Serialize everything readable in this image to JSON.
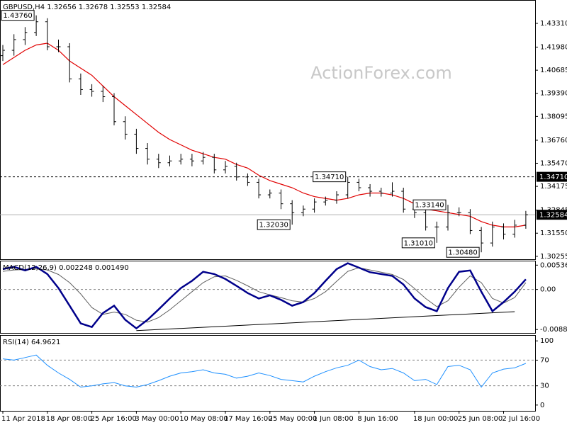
{
  "chart_data": [
    {
      "type": "ohlc",
      "title": "GBPUSD,H4  1.32656 1.32678 1.32553 1.32584",
      "watermark": "ActionForex.com",
      "color": "#000000",
      "open": [
        1.415,
        1.418,
        1.424,
        1.428,
        1.434,
        1.42,
        1.42,
        1.402,
        1.396,
        1.395,
        1.392,
        1.378,
        1.371,
        1.363,
        1.357,
        1.355,
        1.356,
        1.357,
        1.356,
        1.358,
        1.351,
        1.353,
        1.347,
        1.344,
        1.337,
        1.338,
        1.332,
        1.327,
        1.329,
        1.333,
        1.334,
        1.337,
        1.344,
        1.341,
        1.339,
        1.338,
        1.339,
        1.329,
        1.327,
        1.319,
        1.319,
        1.327,
        1.327,
        1.317,
        1.31,
        1.319,
        1.315,
        1.32
      ],
      "high": [
        1.421,
        1.427,
        1.431,
        1.4376,
        1.436,
        1.424,
        1.422,
        1.405,
        1.399,
        1.398,
        1.394,
        1.381,
        1.374,
        1.366,
        1.36,
        1.359,
        1.36,
        1.36,
        1.361,
        1.36,
        1.356,
        1.355,
        1.349,
        1.346,
        1.34,
        1.34,
        1.334,
        1.331,
        1.335,
        1.336,
        1.339,
        1.3471,
        1.346,
        1.343,
        1.341,
        1.344,
        1.341,
        1.331,
        1.329,
        1.322,
        1.3314,
        1.33,
        1.329,
        1.319,
        1.322,
        1.321,
        1.323,
        1.328
      ],
      "low": [
        1.412,
        1.415,
        1.421,
        1.426,
        1.418,
        1.417,
        1.4,
        1.393,
        1.392,
        1.389,
        1.376,
        1.368,
        1.36,
        1.354,
        1.352,
        1.353,
        1.354,
        1.353,
        1.354,
        1.349,
        1.349,
        1.345,
        1.342,
        1.335,
        1.335,
        1.329,
        1.3203,
        1.325,
        1.327,
        1.331,
        1.332,
        1.335,
        1.339,
        1.336,
        1.336,
        1.336,
        1.327,
        1.324,
        1.317,
        1.3101,
        1.317,
        1.325,
        1.315,
        1.3048,
        1.308,
        1.312,
        1.313,
        1.318
      ],
      "close": [
        1.418,
        1.424,
        1.428,
        1.434,
        1.42,
        1.42,
        1.402,
        1.396,
        1.395,
        1.392,
        1.378,
        1.371,
        1.363,
        1.357,
        1.355,
        1.356,
        1.357,
        1.356,
        1.358,
        1.351,
        1.353,
        1.347,
        1.344,
        1.337,
        1.338,
        1.332,
        1.327,
        1.329,
        1.333,
        1.334,
        1.337,
        1.344,
        1.341,
        1.339,
        1.338,
        1.339,
        1.329,
        1.327,
        1.319,
        1.319,
        1.327,
        1.327,
        1.317,
        1.31,
        1.319,
        1.315,
        1.32,
        1.32584
      ],
      "moving_average": {
        "color": "#e00000",
        "values": [
          1.41,
          1.414,
          1.418,
          1.421,
          1.422,
          1.418,
          1.412,
          1.408,
          1.404,
          1.398,
          1.392,
          1.387,
          1.382,
          1.377,
          1.372,
          1.368,
          1.365,
          1.362,
          1.36,
          1.358,
          1.357,
          1.354,
          1.352,
          1.348,
          1.345,
          1.343,
          1.341,
          1.338,
          1.336,
          1.335,
          1.334,
          1.335,
          1.337,
          1.338,
          1.338,
          1.337,
          1.335,
          1.332,
          1.329,
          1.328,
          1.327,
          1.326,
          1.325,
          1.322,
          1.32,
          1.319,
          1.319,
          1.32
        ]
      },
      "ylim": [
        1.3009,
        1.4458
      ],
      "yticks": [
        {
          "value": 1.4331,
          "label": "1.43310"
        },
        {
          "value": 1.4198,
          "label": "1.41980"
        },
        1.40685,
        {
          "value": 1.3939,
          "label": "1.39390"
        },
        1.38095,
        {
          "value": 1.3676,
          "label": "1.36760"
        },
        {
          "value": 1.3547,
          "label": "1.35470"
        },
        1.34175,
        1.32845,
        {
          "value": 1.3155,
          "label": "1.31550"
        },
        1.30255
      ],
      "hline": {
        "value": 1.3471,
        "label": "1.34710"
      },
      "last_price": {
        "value": 1.32584,
        "label": "1.32584"
      },
      "annotations": [
        {
          "value": 1.4376,
          "label": "1.43760",
          "at": "high"
        },
        {
          "value": 1.3471,
          "label": "1.34710",
          "at": "high"
        },
        {
          "value": 1.3314,
          "label": "1.33140",
          "at": "high"
        },
        {
          "value": 1.3203,
          "label": "1.32030",
          "at": "low"
        },
        {
          "value": 1.3101,
          "label": "1.31010",
          "at": "low"
        },
        {
          "value": 1.3048,
          "label": "1.30480",
          "at": "low"
        }
      ]
    },
    {
      "type": "line",
      "title": "MACD(12,26,9) 0.002248 0.001490",
      "ylim": [
        -0.0096,
        0.0062
      ],
      "yticks": [
        0.005368,
        {
          "value": 0,
          "label": "0.00"
        },
        -0.008855
      ],
      "levels": [
        0
      ],
      "series": [
        {
          "color": "#00008b",
          "width": 2.5,
          "values": [
            0.0045,
            0.005,
            0.0042,
            0.005,
            0.0034,
            0.0003,
            -0.0036,
            -0.0075,
            -0.0083,
            -0.0052,
            -0.0036,
            -0.0067,
            -0.0086,
            -0.0067,
            -0.0044,
            -0.002,
            0.0003,
            0.0019,
            0.0039,
            0.0034,
            0.0023,
            0.0008,
            -0.0008,
            -0.002,
            -0.0013,
            -0.0023,
            -0.0036,
            -0.0028,
            -0.0008,
            0.0019,
            0.0045,
            0.0058,
            0.0048,
            0.0038,
            0.0034,
            0.003,
            0.0011,
            -0.002,
            -0.0039,
            -0.0048,
            0.0003,
            0.0039,
            0.0042,
            -0.0005,
            -0.0048,
            -0.0028,
            -0.0005,
            0.002248
          ]
        },
        {
          "color": "#606060",
          "width": 1,
          "values": [
            0.004,
            0.0043,
            0.0044,
            0.0046,
            0.0043,
            0.0033,
            0.0015,
            -0.001,
            -0.004,
            -0.0055,
            -0.005,
            -0.0055,
            -0.0068,
            -0.0072,
            -0.0062,
            -0.0045,
            -0.0025,
            -0.0005,
            0.0015,
            0.0028,
            0.003,
            0.002,
            0.0008,
            -0.0005,
            -0.0012,
            -0.0018,
            -0.0025,
            -0.0028,
            -0.002,
            -0.0005,
            0.0018,
            0.004,
            0.0048,
            0.0043,
            0.0038,
            0.0033,
            0.0022,
            0.0002,
            -0.002,
            -0.0038,
            -0.0025,
            0.0005,
            0.003,
            0.0015,
            -0.002,
            -0.003,
            -0.0018,
            0.00149
          ]
        }
      ],
      "trendline": {
        "x": [
          12,
          46
        ],
        "values": [
          -0.0091,
          -0.0049
        ]
      }
    },
    {
      "type": "line",
      "title": "RSI(14) 64.9621",
      "ylim": [
        -9,
        108
      ],
      "yticks": [
        100,
        70,
        30,
        0
      ],
      "levels": [
        70,
        30
      ],
      "series": [
        {
          "color": "#1e90ff",
          "width": 1,
          "values": [
            72,
            70,
            74,
            78,
            62,
            50,
            40,
            28,
            30,
            33,
            35,
            30,
            28,
            32,
            38,
            45,
            50,
            52,
            55,
            50,
            48,
            42,
            45,
            50,
            46,
            40,
            38,
            36,
            45,
            52,
            58,
            62,
            70,
            60,
            55,
            57,
            50,
            38,
            40,
            32,
            60,
            62,
            55,
            28,
            50,
            56,
            58,
            64.9621
          ]
        }
      ],
      "categories": [
        "11 Apr 2018",
        null,
        null,
        null,
        "18 Apr 08:00",
        null,
        null,
        null,
        "25 Apr 16:00",
        null,
        null,
        null,
        "3 May 00:00",
        null,
        null,
        null,
        "10 May 08:00",
        null,
        null,
        null,
        "17 May 16:00",
        null,
        null,
        null,
        "25 May 00:00",
        null,
        null,
        null,
        "1 Jun 08:00",
        null,
        null,
        null,
        "8 Jun 16:00",
        null,
        null,
        null,
        null,
        "18 Jun 00:00",
        null,
        null,
        null,
        "25 Jun 08:00",
        null,
        null,
        null,
        "2 Jul 16:00",
        null,
        null
      ]
    }
  ]
}
